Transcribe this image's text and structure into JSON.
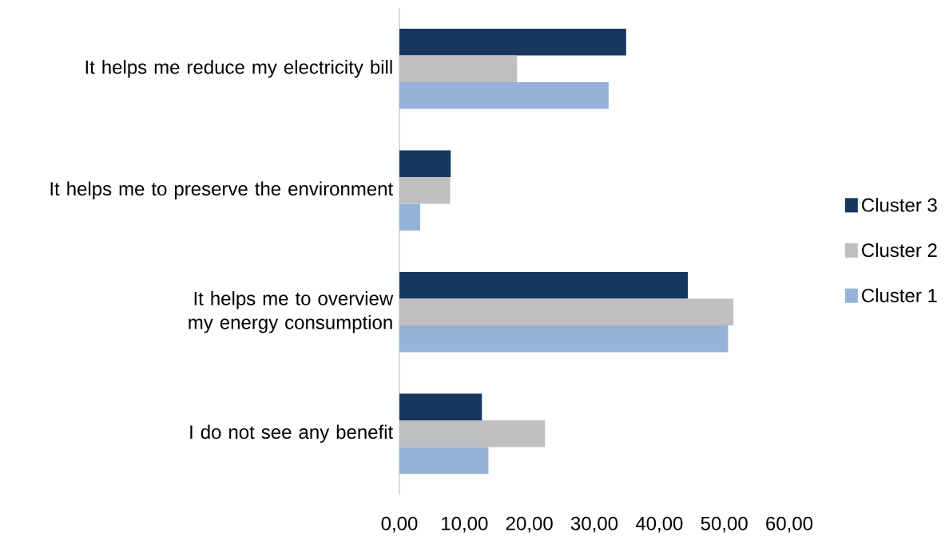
{
  "chart_data": {
    "type": "bar",
    "orientation": "horizontal",
    "categories": [
      "It helps me reduce my electricity bill",
      "It helps me to preserve the environment",
      "It helps me to overview my energy consumption",
      "I do not see any benefit"
    ],
    "series": [
      {
        "name": "Cluster 3",
        "color": "#17375e",
        "values": [
          34.9,
          7.9,
          44.4,
          12.7
        ]
      },
      {
        "name": "Cluster 2",
        "color": "#bfbfbf",
        "values": [
          18.1,
          7.8,
          51.4,
          22.4
        ]
      },
      {
        "name": "Cluster 1",
        "color": "#95b3d7",
        "values": [
          32.2,
          3.2,
          50.6,
          13.7
        ]
      }
    ],
    "xlim": [
      0,
      60
    ],
    "xticks": [
      {
        "value": 0,
        "label": "0,00"
      },
      {
        "value": 10,
        "label": "10,00"
      },
      {
        "value": 20,
        "label": "20,00"
      },
      {
        "value": 30,
        "label": "30,00"
      },
      {
        "value": 40,
        "label": "40,00"
      },
      {
        "value": 50,
        "label": "50,00"
      },
      {
        "value": 60,
        "label": "60,00"
      }
    ],
    "legend": "right",
    "grid": false
  }
}
